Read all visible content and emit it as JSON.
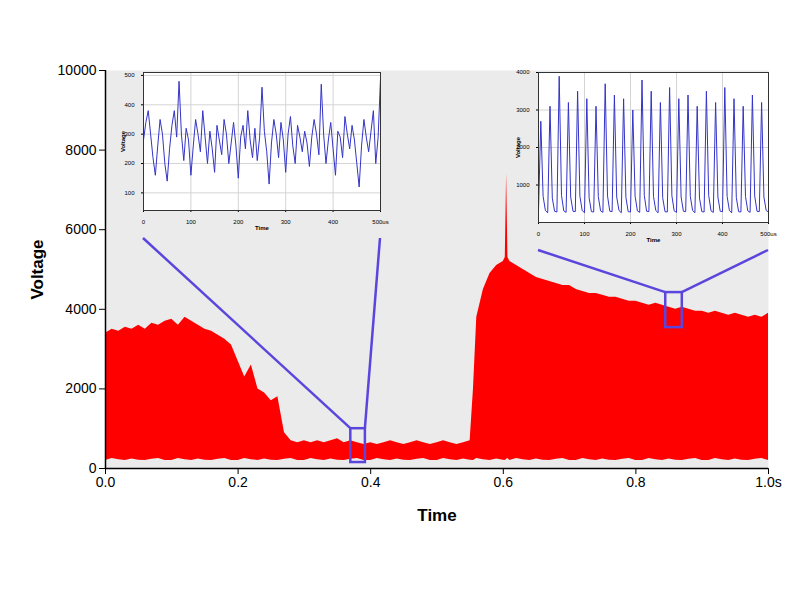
{
  "chart_data": [
    {
      "type": "area",
      "x_label": "Time",
      "y_label": "Voltage",
      "color": "#ff0000",
      "grid": false,
      "xlim": [
        0,
        1
      ],
      "ylim": [
        0,
        10000
      ],
      "xticks": [
        {
          "value": 0,
          "label": "0.0"
        },
        0.2,
        0.4,
        0.6,
        0.8,
        {
          "value": 1,
          "label": "1.0s"
        }
      ],
      "yticks": [
        0,
        2000,
        4000,
        6000,
        8000,
        10000
      ],
      "x": [
        0,
        0.01,
        0.02,
        0.03,
        0.04,
        0.05,
        0.06,
        0.07,
        0.08,
        0.09,
        0.1,
        0.11,
        0.12,
        0.13,
        0.14,
        0.15,
        0.16,
        0.17,
        0.18,
        0.19,
        0.2,
        0.21,
        0.22,
        0.23,
        0.24,
        0.25,
        0.26,
        0.27,
        0.28,
        0.29,
        0.3,
        0.31,
        0.32,
        0.33,
        0.34,
        0.35,
        0.36,
        0.37,
        0.38,
        0.39,
        0.4,
        0.41,
        0.42,
        0.43,
        0.44,
        0.45,
        0.46,
        0.47,
        0.48,
        0.49,
        0.5,
        0.51,
        0.52,
        0.53,
        0.54,
        0.55,
        0.555,
        0.56,
        0.57,
        0.58,
        0.59,
        0.6,
        0.603,
        0.605,
        0.607,
        0.61,
        0.62,
        0.63,
        0.64,
        0.65,
        0.66,
        0.67,
        0.68,
        0.69,
        0.7,
        0.71,
        0.72,
        0.73,
        0.74,
        0.75,
        0.76,
        0.77,
        0.78,
        0.79,
        0.8,
        0.81,
        0.82,
        0.83,
        0.84,
        0.85,
        0.86,
        0.87,
        0.88,
        0.89,
        0.9,
        0.91,
        0.92,
        0.93,
        0.94,
        0.95,
        0.96,
        0.97,
        0.98,
        0.99,
        1
      ],
      "values": [
        3400,
        3500,
        3450,
        3550,
        3500,
        3600,
        3500,
        3650,
        3600,
        3700,
        3750,
        3600,
        3800,
        3700,
        3600,
        3500,
        3450,
        3350,
        3250,
        3100,
        2700,
        2300,
        2600,
        2000,
        1900,
        1700,
        1800,
        900,
        700,
        650,
        700,
        650,
        700,
        650,
        700,
        750,
        650,
        700,
        650,
        600,
        650,
        600,
        650,
        700,
        650,
        600,
        650,
        700,
        650,
        600,
        650,
        700,
        650,
        600,
        650,
        700,
        2000,
        3800,
        4500,
        4900,
        5100,
        5200,
        5300,
        7400,
        5300,
        5200,
        5100,
        5000,
        4900,
        4800,
        4750,
        4700,
        4650,
        4600,
        4600,
        4500,
        4450,
        4400,
        4400,
        4350,
        4300,
        4300,
        4250,
        4200,
        4200,
        4150,
        4100,
        4150,
        4100,
        4050,
        4000,
        4050,
        4000,
        3950,
        3950,
        3900,
        3950,
        3900,
        3850,
        3900,
        3850,
        3800,
        3850,
        3800,
        3900
      ],
      "lower": [
        200,
        250,
        220,
        200,
        240,
        210,
        200,
        230,
        250,
        200,
        200,
        250,
        220,
        200,
        240,
        210,
        200,
        230,
        250,
        200,
        200,
        250,
        220,
        200,
        240,
        210,
        200,
        230,
        250,
        200,
        200,
        250,
        220,
        200,
        240,
        210,
        200,
        230,
        250,
        200,
        200,
        250,
        220,
        200,
        240,
        210,
        200,
        230,
        250,
        200,
        200,
        250,
        220,
        200,
        240,
        210,
        200,
        250,
        220,
        200,
        240,
        210,
        200,
        230,
        250,
        200,
        250,
        220,
        200,
        240,
        210,
        200,
        230,
        250,
        200,
        200,
        250,
        220,
        200,
        240,
        210,
        200,
        230,
        250,
        200,
        200,
        250,
        220,
        200,
        240,
        210,
        200,
        230,
        250,
        200,
        200,
        250,
        220,
        200,
        240,
        210,
        200,
        230,
        250,
        200
      ]
    },
    {
      "type": "line",
      "x_label": "Time",
      "y_label": "Voltage",
      "color": "#3434c8",
      "grid": true,
      "xlim": [
        0,
        500
      ],
      "ylim": [
        40,
        510
      ],
      "xticks": [
        0,
        100,
        200,
        300,
        400,
        {
          "value": 500,
          "label": "500us"
        }
      ],
      "yticks": [
        100,
        200,
        300,
        400,
        500
      ],
      "source_box": {
        "x": [
          0.37,
          0.392
        ],
        "y": [
          150,
          1000
        ]
      },
      "x": [
        0,
        5,
        10,
        15,
        20,
        25,
        30,
        35,
        40,
        45,
        50,
        55,
        60,
        65,
        70,
        75,
        80,
        85,
        90,
        95,
        100,
        105,
        110,
        115,
        120,
        125,
        130,
        135,
        140,
        145,
        150,
        155,
        160,
        165,
        170,
        175,
        180,
        185,
        190,
        195,
        200,
        205,
        210,
        215,
        220,
        225,
        230,
        235,
        240,
        245,
        250,
        255,
        260,
        265,
        270,
        275,
        280,
        285,
        290,
        295,
        300,
        305,
        310,
        315,
        320,
        325,
        330,
        335,
        340,
        345,
        350,
        355,
        360,
        365,
        370,
        375,
        380,
        385,
        390,
        395,
        400,
        405,
        410,
        415,
        420,
        425,
        430,
        435,
        440,
        445,
        450,
        455,
        460,
        465,
        470,
        475,
        480,
        485,
        490,
        495,
        500
      ],
      "values": [
        280,
        340,
        380,
        300,
        220,
        160,
        260,
        350,
        300,
        200,
        140,
        250,
        330,
        380,
        290,
        480,
        300,
        210,
        320,
        280,
        160,
        260,
        350,
        300,
        240,
        380,
        290,
        200,
        310,
        250,
        170,
        330,
        280,
        230,
        350,
        300,
        200,
        270,
        340,
        260,
        150,
        290,
        330,
        250,
        380,
        280,
        220,
        320,
        210,
        290,
        460,
        310,
        240,
        130,
        270,
        350,
        300,
        220,
        340,
        280,
        170,
        300,
        360,
        260,
        200,
        330,
        290,
        240,
        310,
        270,
        190,
        290,
        350,
        300,
        230,
        470,
        300,
        200,
        280,
        340,
        250,
        160,
        310,
        290,
        220,
        360,
        300,
        250,
        330,
        280,
        200,
        120,
        260,
        350,
        290,
        240,
        310,
        380,
        200,
        290,
        490
      ]
    },
    {
      "type": "line",
      "x_label": "Time",
      "y_label": "Voltage",
      "color": "#3434c8",
      "grid": true,
      "xlim": [
        0,
        500
      ],
      "ylim": [
        0,
        4000
      ],
      "xticks": [
        0,
        100,
        200,
        300,
        400,
        {
          "value": 500,
          "label": "500us"
        }
      ],
      "yticks": [
        1000,
        2000,
        3000,
        4000
      ],
      "source_box": {
        "x": [
          0.845,
          0.87
        ],
        "y": [
          3540,
          4420
        ]
      },
      "x": [
        0,
        5,
        10,
        15,
        20,
        25,
        30,
        35,
        40,
        45,
        50,
        55,
        60,
        65,
        70,
        75,
        80,
        85,
        90,
        95,
        100,
        105,
        110,
        115,
        120,
        125,
        130,
        135,
        140,
        145,
        150,
        155,
        160,
        165,
        170,
        175,
        180,
        185,
        190,
        195,
        200,
        205,
        210,
        215,
        220,
        225,
        230,
        235,
        240,
        245,
        250,
        255,
        260,
        265,
        270,
        275,
        280,
        285,
        290,
        295,
        300,
        305,
        310,
        315,
        320,
        325,
        330,
        335,
        340,
        345,
        350,
        355,
        360,
        365,
        370,
        375,
        380,
        385,
        390,
        395,
        400,
        405,
        410,
        415,
        420,
        425,
        430,
        435,
        440,
        445,
        450,
        455,
        460,
        465,
        470,
        475,
        480,
        485,
        490,
        495,
        500
      ],
      "values": [
        300,
        2700,
        700,
        320,
        260,
        3100,
        650,
        300,
        280,
        3900,
        720,
        310,
        270,
        3200,
        680,
        300,
        290,
        3500,
        700,
        320,
        260,
        3300,
        660,
        290,
        280,
        3100,
        690,
        310,
        270,
        3700,
        710,
        300,
        290,
        3400,
        680,
        320,
        260,
        3300,
        670,
        290,
        280,
        3000,
        700,
        310,
        270,
        3800,
        720,
        300,
        290,
        3500,
        690,
        320,
        260,
        3200,
        660,
        290,
        280,
        3600,
        710,
        310,
        270,
        3300,
        680,
        300,
        290,
        3400,
        700,
        320,
        260,
        3100,
        650,
        290,
        280,
        3500,
        720,
        310,
        270,
        3200,
        680,
        300,
        290,
        3600,
        700,
        320,
        260,
        3300,
        670,
        290,
        280,
        3100,
        690,
        310,
        270,
        3400,
        710,
        300,
        290,
        3200,
        680,
        320,
        280
      ]
    }
  ]
}
